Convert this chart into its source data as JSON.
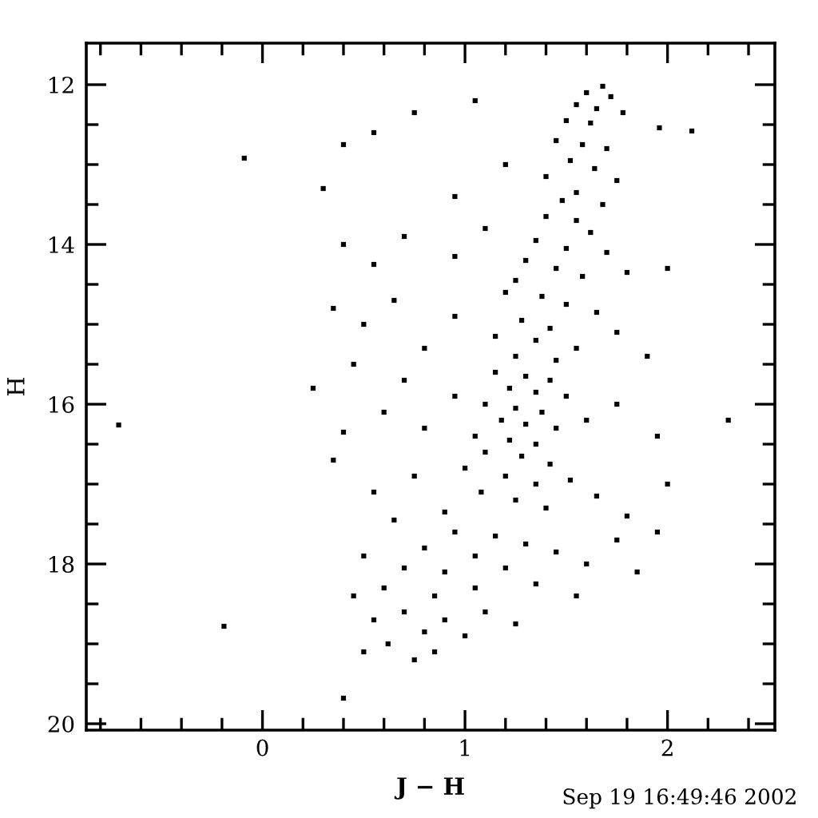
{
  "chart_data": {
    "type": "scatter",
    "xlabel": "J − H",
    "ylabel": "H",
    "annotations": [
      "Sep 19 16:49:46 2002"
    ],
    "color": "#000000",
    "marker": "square",
    "grid": false,
    "x": [
      1.68,
      1.6,
      1.72,
      1.55,
      1.65,
      1.78,
      1.5,
      1.62,
      1.96,
      2.12,
      0.75,
      1.05,
      1.45,
      1.58,
      1.7,
      1.52,
      1.64,
      1.4,
      1.75,
      1.55,
      1.48,
      1.68,
      -0.09,
      0.55,
      0.4,
      0.95,
      0.3,
      1.2,
      1.4,
      1.55,
      1.62,
      1.35,
      1.5,
      1.7,
      1.3,
      1.45,
      1.58,
      1.25,
      1.8,
      0.4,
      0.55,
      0.7,
      0.95,
      1.1,
      2.0,
      1.2,
      1.38,
      1.5,
      1.65,
      1.28,
      1.42,
      1.15,
      1.35,
      1.55,
      1.25,
      1.45,
      1.75,
      0.35,
      0.5,
      0.65,
      0.8,
      0.95,
      1.9,
      0.45,
      1.15,
      1.3,
      1.42,
      1.22,
      1.35,
      1.5,
      1.1,
      1.25,
      1.38,
      1.18,
      1.3,
      1.45,
      1.05,
      1.22,
      1.35,
      1.6,
      1.75,
      0.95,
      0.8,
      0.6,
      0.4,
      0.25,
      1.95,
      2.3,
      -0.71,
      0.7,
      1.1,
      1.28,
      1.42,
      1.0,
      1.2,
      1.35,
      1.52,
      1.08,
      1.25,
      1.4,
      0.9,
      1.65,
      1.8,
      0.75,
      0.55,
      0.35,
      0.65,
      2.0,
      1.95,
      0.95,
      1.15,
      1.3,
      0.8,
      1.05,
      1.45,
      0.7,
      0.9,
      1.2,
      1.6,
      1.75,
      0.6,
      0.85,
      1.05,
      1.35,
      0.5,
      0.45,
      1.85,
      1.55,
      0.7,
      0.9,
      1.1,
      0.8,
      1.0,
      0.62,
      0.85,
      0.55,
      1.25,
      0.75,
      -0.19,
      0.4,
      0.5
    ],
    "values": [
      12.02,
      12.1,
      12.15,
      12.25,
      12.3,
      12.35,
      12.45,
      12.48,
      12.54,
      12.58,
      12.35,
      12.2,
      12.7,
      12.75,
      12.8,
      12.95,
      13.05,
      13.15,
      13.2,
      13.35,
      13.45,
      13.5,
      12.92,
      12.6,
      12.75,
      13.4,
      13.3,
      13.0,
      13.65,
      13.7,
      13.85,
      13.95,
      14.05,
      14.1,
      14.2,
      14.3,
      14.4,
      14.45,
      14.35,
      14.0,
      14.25,
      13.9,
      14.15,
      13.8,
      14.3,
      14.6,
      14.65,
      14.75,
      14.85,
      14.95,
      15.05,
      15.15,
      15.2,
      15.3,
      15.4,
      15.45,
      15.1,
      14.8,
      15.0,
      14.7,
      15.3,
      14.9,
      15.4,
      15.5,
      15.6,
      15.65,
      15.7,
      15.8,
      15.85,
      15.9,
      16.0,
      16.05,
      16.1,
      16.2,
      16.25,
      16.3,
      16.4,
      16.45,
      16.5,
      16.2,
      16.0,
      15.9,
      16.3,
      16.1,
      16.35,
      15.8,
      16.4,
      16.2,
      16.26,
      15.7,
      16.6,
      16.65,
      16.75,
      16.8,
      16.9,
      17.0,
      16.95,
      17.1,
      17.2,
      17.3,
      17.35,
      17.15,
      17.4,
      16.9,
      17.1,
      16.7,
      17.45,
      17.0,
      17.6,
      17.6,
      17.65,
      17.75,
      17.8,
      17.9,
      17.85,
      18.05,
      18.1,
      18.05,
      18.0,
      17.7,
      18.3,
      18.4,
      18.3,
      18.25,
      17.9,
      18.4,
      18.1,
      18.4,
      18.6,
      18.7,
      18.6,
      18.85,
      18.9,
      19.0,
      19.1,
      18.7,
      18.75,
      19.2,
      18.78,
      19.68,
      19.1
    ],
    "xlim": [
      -0.87,
      2.53
    ],
    "ylim": [
      20.08,
      11.48
    ],
    "xticks": [
      {
        "value": -0.8,
        "label": null
      },
      {
        "value": -0.6,
        "label": null
      },
      {
        "value": -0.4,
        "label": null
      },
      {
        "value": -0.2,
        "label": null
      },
      0,
      {
        "value": 0.2,
        "label": null
      },
      {
        "value": 0.4,
        "label": null
      },
      {
        "value": 0.6,
        "label": null
      },
      {
        "value": 0.8,
        "label": null
      },
      1,
      {
        "value": 1.2,
        "label": null
      },
      {
        "value": 1.4,
        "label": null
      },
      {
        "value": 1.6,
        "label": null
      },
      {
        "value": 1.8,
        "label": null
      },
      2,
      {
        "value": 2.2,
        "label": null
      },
      {
        "value": 2.4,
        "label": null
      }
    ],
    "yticks": [
      12,
      {
        "value": 12.5,
        "label": null
      },
      {
        "value": 13,
        "label": null
      },
      {
        "value": 13.5,
        "label": null
      },
      14,
      {
        "value": 14.5,
        "label": null
      },
      {
        "value": 15,
        "label": null
      },
      {
        "value": 15.5,
        "label": null
      },
      16,
      {
        "value": 16.5,
        "label": null
      },
      {
        "value": 17,
        "label": null
      },
      {
        "value": 17.5,
        "label": null
      },
      18,
      {
        "value": 18.5,
        "label": null
      },
      {
        "value": 19,
        "label": null
      },
      {
        "value": 19.5,
        "label": null
      },
      20
    ]
  }
}
